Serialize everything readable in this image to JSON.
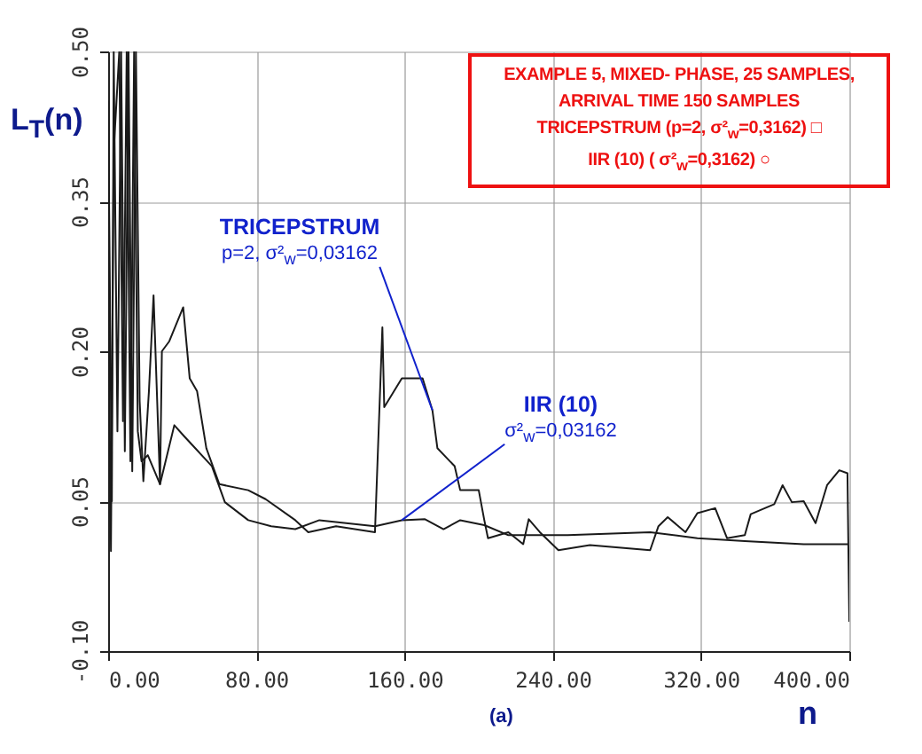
{
  "chart_data": {
    "type": "line",
    "ylabel": "L$_{T}$(n)",
    "xlabel": "n",
    "xlim": [
      0,
      400
    ],
    "xticks": [
      {
        "value": 0,
        "label": "0.00"
      },
      {
        "value": 80,
        "label": "80.00"
      },
      {
        "value": 160,
        "label": "160.00"
      },
      {
        "value": 240,
        "label": "240.00"
      },
      {
        "value": 320,
        "label": "320.00"
      },
      {
        "value": 400,
        "label": "400.00"
      }
    ],
    "ylim": [
      -0.1,
      0.5
    ],
    "yticks": [
      {
        "value": -0.1,
        "label": "-0.10"
      },
      {
        "value": 0.05,
        "label": "0.05"
      },
      {
        "value": 0.2,
        "label": "0.20"
      },
      {
        "value": 0.35,
        "label": "0.35"
      },
      {
        "value": 0.5,
        "label": "0.50"
      }
    ],
    "grid": true,
    "line_style": "solid",
    "series": [
      {
        "color": "#1a1a1a",
        "x": [
          0,
          2,
          3,
          5,
          7,
          9,
          11,
          13,
          15,
          17,
          19,
          22,
          24.5,
          28,
          29,
          33,
          40.5,
          44,
          48,
          53,
          60,
          75.6,
          85,
          101,
          108,
          123,
          144,
          148,
          149,
          158.5,
          169.7,
          175,
          177.7,
          187,
          190,
          200,
          203,
          205,
          216,
          224,
          227,
          233,
          243,
          260,
          292.5,
          297,
          302,
          311.6,
          318,
          327.6,
          334,
          343.6,
          346.8,
          359.5,
          364,
          369,
          375.4,
          381.8,
          388,
          394.6,
          399,
          400
        ],
        "values": [
          0.45,
          0.05,
          0.5,
          0.12,
          0.5,
          0.1,
          0.5,
          0.08,
          0.5,
          0.15,
          0.07,
          0.16,
          0.256,
          0.067,
          0.2,
          0.21,
          0.244,
          0.173,
          0.16,
          0.103,
          0.067,
          0.061,
          0.052,
          0.031,
          0.019,
          0.025,
          0.019,
          0.224,
          0.144,
          0.173,
          0.173,
          0.141,
          0.103,
          0.085,
          0.061,
          0.061,
          0.031,
          0.013,
          0.019,
          0.007,
          0.032,
          0.019,
          0.001,
          0.006,
          0.001,
          0.025,
          0.034,
          0.019,
          0.038,
          0.043,
          0.013,
          0.016,
          0.037,
          0.047,
          0.066,
          0.049,
          0.05,
          0.028,
          0.066,
          0.081,
          0.078,
          -0.07
        ]
      },
      {
        "color": "#1a1a1a",
        "x": [
          0,
          1.5,
          3,
          6,
          8,
          10,
          12,
          14,
          16,
          18,
          21.4,
          28,
          35.7,
          41,
          47,
          56,
          63,
          75.6,
          88,
          101,
          114,
          144,
          158.5,
          171,
          181,
          190,
          203,
          216,
          248,
          292.5,
          318,
          343.6,
          375.4,
          399
        ],
        "values": [
          0.3,
          0.0,
          0.4,
          0.5,
          0.13,
          0.5,
          0.09,
          0.5,
          0.12,
          0.09,
          0.096,
          0.067,
          0.126,
          0.115,
          0.103,
          0.085,
          0.049,
          0.031,
          0.025,
          0.022,
          0.031,
          0.025,
          0.031,
          0.032,
          0.022,
          0.031,
          0.026,
          0.016,
          0.016,
          0.019,
          0.013,
          0.01,
          0.007,
          0.007
        ]
      }
    ],
    "annotations": [
      "EXAMPLE 5, MIXED- PHASE, 25 SAMPLES,",
      "ARRIVAL TIME 150 SAMPLES",
      "TRICEPSTRUM (p=2, σ²$_{w}$=0,3162) □",
      "IIR (10) ( σ²$_{w}$=0,3162) ○",
      {
        "text": "TRICEPSTRUM\np=2, σ²$_{w}$=0,03162",
        "x": 175,
        "y": 0.141
      },
      {
        "text": "IIR (10)\nσ²$_{w}$=0,03162",
        "x": 158.5,
        "y": 0.031
      },
      "(a)"
    ]
  }
}
